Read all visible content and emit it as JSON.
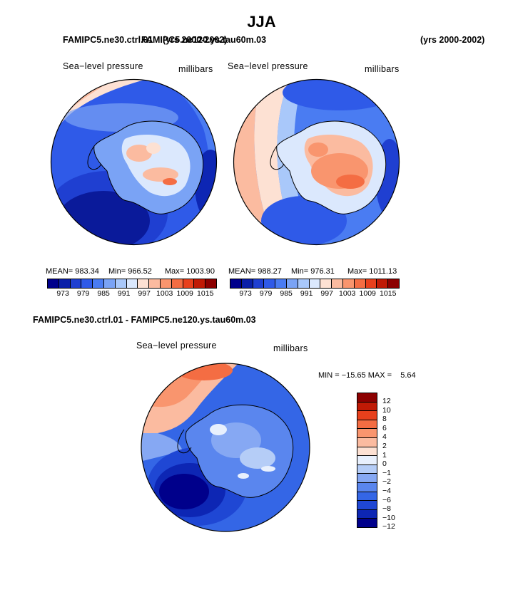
{
  "page": {
    "title": "JJA",
    "left_case": "FAMIPC5.ne30.ctrl.01",
    "left_years": "(yrs 2000-2002)",
    "right_case": "FAMIPC5.ne120.ys.tau60m.03",
    "right_years": "(yrs 2000-2002)",
    "diff_title": "FAMIPC5.ne30.ctrl.01 - FAMIPC5.ne120.ys.tau60m.03"
  },
  "panels": [
    {
      "variable": "Sea−level pressure",
      "units": "millibars",
      "stats": {
        "mean": "MEAN= 983.34",
        "min": "Min= 966.52",
        "max": "Max= 1003.90"
      }
    },
    {
      "variable": "Sea−level pressure",
      "units": "millibars",
      "stats": {
        "mean": "MEAN= 988.27",
        "min": "Min= 976.31",
        "max": "Max= 1011.13"
      }
    },
    {
      "variable": "Sea−level pressure",
      "units": "millibars",
      "stats": {
        "minmax": "MIN = −15.65 MAX =    5.64"
      }
    }
  ],
  "colorbar_abs": {
    "colors": [
      "#00008b",
      "#0a1fa8",
      "#1f3fd1",
      "#2f5ae8",
      "#4a7cf2",
      "#7aa3f5",
      "#a9c8fa",
      "#dbe8fd",
      "#fde1d3",
      "#fbbba0",
      "#f9956e",
      "#f46d43",
      "#e8401c",
      "#c01a05",
      "#8c0000"
    ],
    "labels": [
      "973",
      "979",
      "985",
      "991",
      "997",
      "1003",
      "1009",
      "1015"
    ]
  },
  "colorbar_diff": {
    "colors": [
      "#8c0000",
      "#c01a05",
      "#e8401c",
      "#f46d43",
      "#f9956e",
      "#fbbba0",
      "#fde1d3",
      "#e8f0fd",
      "#b5cdf7",
      "#86a8f3",
      "#5a86ee",
      "#3466e6",
      "#1f47d4",
      "#0d26b4",
      "#00008b"
    ],
    "labels": [
      "12",
      "10",
      "8",
      "6",
      "4",
      "2",
      "1",
      "0",
      "−1",
      "−2",
      "−4",
      "−6",
      "−8",
      "−10",
      "−12"
    ]
  },
  "map_palette": {
    "deep_blue": "#0a1a9a",
    "mid_blue": "#2f5ae8",
    "light_blue": "#7aa3f5",
    "pale": "#e3ecfd",
    "peach": "#fbbba0",
    "orange": "#f46d43",
    "red": "#d7301f",
    "coast": "#000000"
  }
}
